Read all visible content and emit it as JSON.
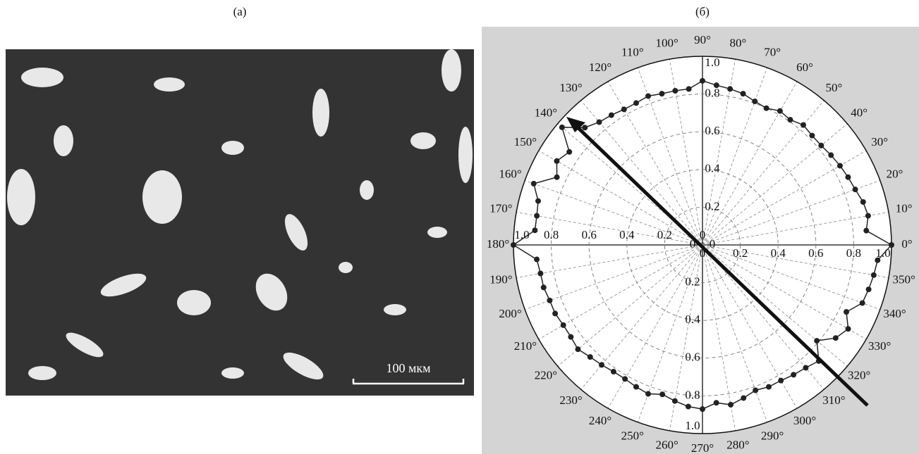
{
  "panels": {
    "a": {
      "label": "(а)",
      "scale_bar": "100 мкм"
    }
  },
  "chart_data": {
    "type": "polar",
    "label": "(б)",
    "x": [
      0,
      5,
      10,
      15,
      20,
      25,
      30,
      35,
      40,
      45,
      50,
      55,
      60,
      65,
      70,
      75,
      80,
      85,
      90,
      95,
      100,
      105,
      110,
      115,
      120,
      125,
      130,
      135,
      140,
      145,
      150,
      155,
      160,
      165,
      170,
      175,
      180,
      185,
      190,
      195,
      200,
      205,
      210,
      215,
      220,
      225,
      230,
      235,
      240,
      245,
      250,
      255,
      260,
      265,
      270,
      275,
      280,
      285,
      290,
      295,
      300,
      305,
      310,
      315,
      320,
      325,
      330,
      335,
      340,
      345,
      350,
      355
    ],
    "values": [
      1.0,
      0.87,
      0.89,
      0.88,
      0.86,
      0.85,
      0.84,
      0.83,
      0.82,
      0.82,
      0.83,
      0.81,
      0.82,
      0.8,
      0.81,
      0.83,
      0.84,
      0.85,
      0.87,
      0.83,
      0.83,
      0.83,
      0.84,
      0.83,
      0.83,
      0.84,
      0.85,
      0.88,
      0.97,
      0.86,
      0.89,
      0.85,
      0.95,
      0.9,
      0.89,
      0.89,
      1.0,
      0.88,
      0.87,
      0.87,
      0.86,
      0.86,
      0.85,
      0.85,
      0.86,
      0.84,
      0.83,
      0.82,
      0.82,
      0.83,
      0.84,
      0.82,
      0.84,
      0.86,
      0.87,
      0.84,
      0.86,
      0.84,
      0.82,
      0.83,
      0.83,
      0.84,
      0.85,
      0.87,
      0.79,
      0.86,
      0.89,
      0.84,
      0.9,
      0.91,
      0.92,
      0.93
    ],
    "color": "#222",
    "xticks": [
      {
        "value": 0,
        "label": "0°"
      },
      {
        "value": 10,
        "label": "10°"
      },
      {
        "value": 20,
        "label": "20°"
      },
      {
        "value": 30,
        "label": "30°"
      },
      {
        "value": 40,
        "label": "40°"
      },
      {
        "value": 50,
        "label": "50°"
      },
      {
        "value": 60,
        "label": "60°"
      },
      {
        "value": 70,
        "label": "70°"
      },
      {
        "value": 80,
        "label": "80°"
      },
      {
        "value": 90,
        "label": "90°"
      },
      {
        "value": 100,
        "label": "100°"
      },
      {
        "value": 110,
        "label": "110°"
      },
      {
        "value": 120,
        "label": "120°"
      },
      {
        "value": 130,
        "label": "130°"
      },
      {
        "value": 140,
        "label": "140°"
      },
      {
        "value": 150,
        "label": "150°"
      },
      {
        "value": 160,
        "label": "160°"
      },
      {
        "value": 170,
        "label": "170°"
      },
      {
        "value": 180,
        "label": "180°"
      },
      {
        "value": 190,
        "label": "190°"
      },
      {
        "value": 200,
        "label": "200°"
      },
      {
        "value": 210,
        "label": "210°"
      },
      {
        "value": 220,
        "label": "220°"
      },
      {
        "value": 230,
        "label": "230°"
      },
      {
        "value": 240,
        "label": "240°"
      },
      {
        "value": 250,
        "label": "250°"
      },
      {
        "value": 260,
        "label": "260°"
      },
      {
        "value": 270,
        "label": "270°"
      },
      {
        "value": 280,
        "label": "280°"
      },
      {
        "value": 290,
        "label": "290°"
      },
      {
        "value": 300,
        "label": "300°"
      },
      {
        "value": 310,
        "label": "310°"
      },
      {
        "value": 320,
        "label": "320°"
      },
      {
        "value": 330,
        "label": "330°"
      },
      {
        "value": 340,
        "label": "340°"
      },
      {
        "value": 350,
        "label": "350°"
      }
    ],
    "ylim": [
      0,
      1
    ],
    "yticks": [
      0,
      0.2,
      0.4,
      0.6,
      0.8,
      {
        "value": 1,
        "label": "1.0"
      }
    ],
    "grid": true
  }
}
